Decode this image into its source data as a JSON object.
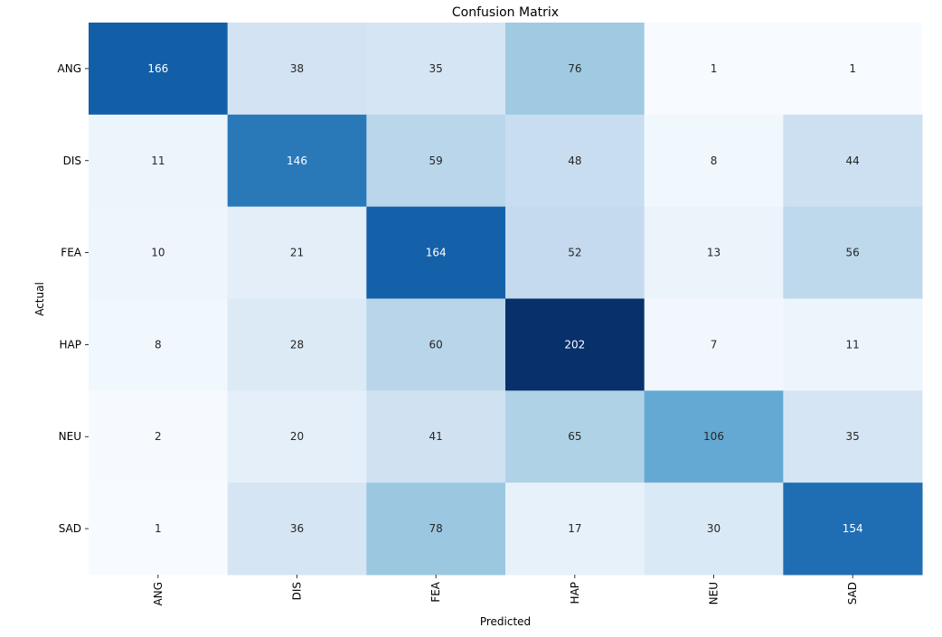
{
  "chart_data": {
    "type": "heatmap",
    "title": "Confusion Matrix",
    "xlabel": "Predicted",
    "ylabel": "Actual",
    "x_categories": [
      "ANG",
      "DIS",
      "FEA",
      "HAP",
      "NEU",
      "SAD"
    ],
    "y_categories": [
      "ANG",
      "DIS",
      "FEA",
      "HAP",
      "NEU",
      "SAD"
    ],
    "values": [
      [
        166,
        38,
        35,
        76,
        1,
        1
      ],
      [
        11,
        146,
        59,
        48,
        8,
        44
      ],
      [
        10,
        21,
        164,
        52,
        13,
        56
      ],
      [
        8,
        28,
        60,
        202,
        7,
        11
      ],
      [
        2,
        20,
        41,
        65,
        106,
        35
      ],
      [
        1,
        36,
        78,
        17,
        30,
        154
      ]
    ],
    "colormap": "Blues",
    "colors": {
      "low": "#f7fbff",
      "high": "#08306b",
      "text_dark": "#262626",
      "text_light": "#ffffff"
    }
  }
}
